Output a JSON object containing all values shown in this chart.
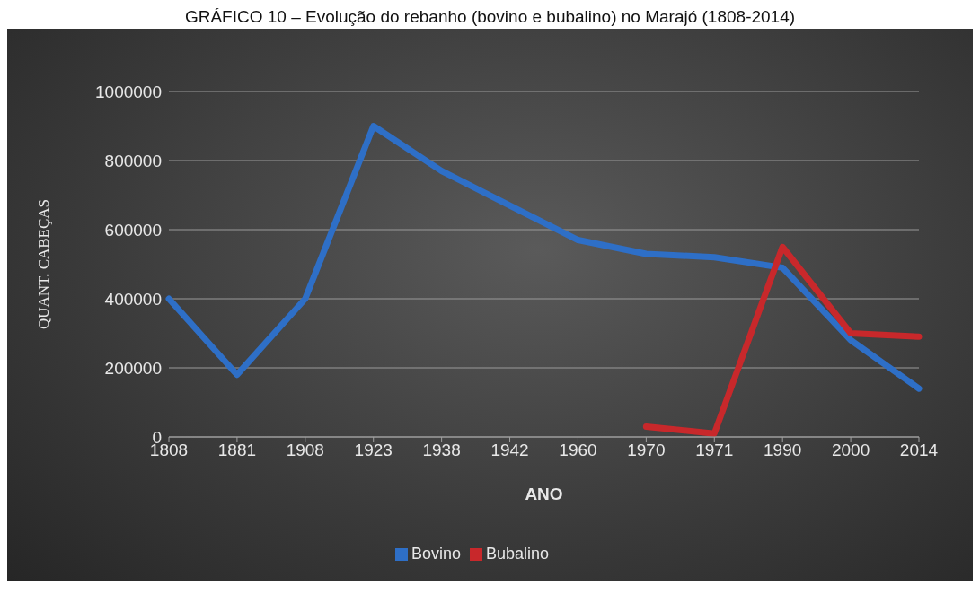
{
  "chart_data": {
    "type": "line",
    "title": "GRÁFICO 10 – Evolução do rebanho (bovino e bubalino) no Marajó (1808-2014)",
    "xlabel": "ANO",
    "ylabel": "QUANT. CABEÇAS",
    "categories": [
      "1808",
      "1881",
      "1908",
      "1923",
      "1938",
      "1942",
      "1960",
      "1970",
      "1971",
      "1990",
      "2000",
      "2014"
    ],
    "series": [
      {
        "name": "Bovino",
        "color": "#2e6fc7",
        "values": [
          400000,
          180000,
          400000,
          900000,
          770000,
          670000,
          570000,
          530000,
          520000,
          490000,
          280000,
          140000
        ]
      },
      {
        "name": "Bubalino",
        "color": "#c8282b",
        "values": [
          null,
          null,
          null,
          null,
          null,
          null,
          null,
          30000,
          10000,
          550000,
          300000,
          290000
        ]
      }
    ],
    "ylim": [
      0,
      1000000
    ],
    "yticks": [
      0,
      200000,
      400000,
      600000,
      800000,
      1000000
    ],
    "grid": "y",
    "legend": "bottom",
    "marker": "none",
    "line_style": "solid"
  }
}
